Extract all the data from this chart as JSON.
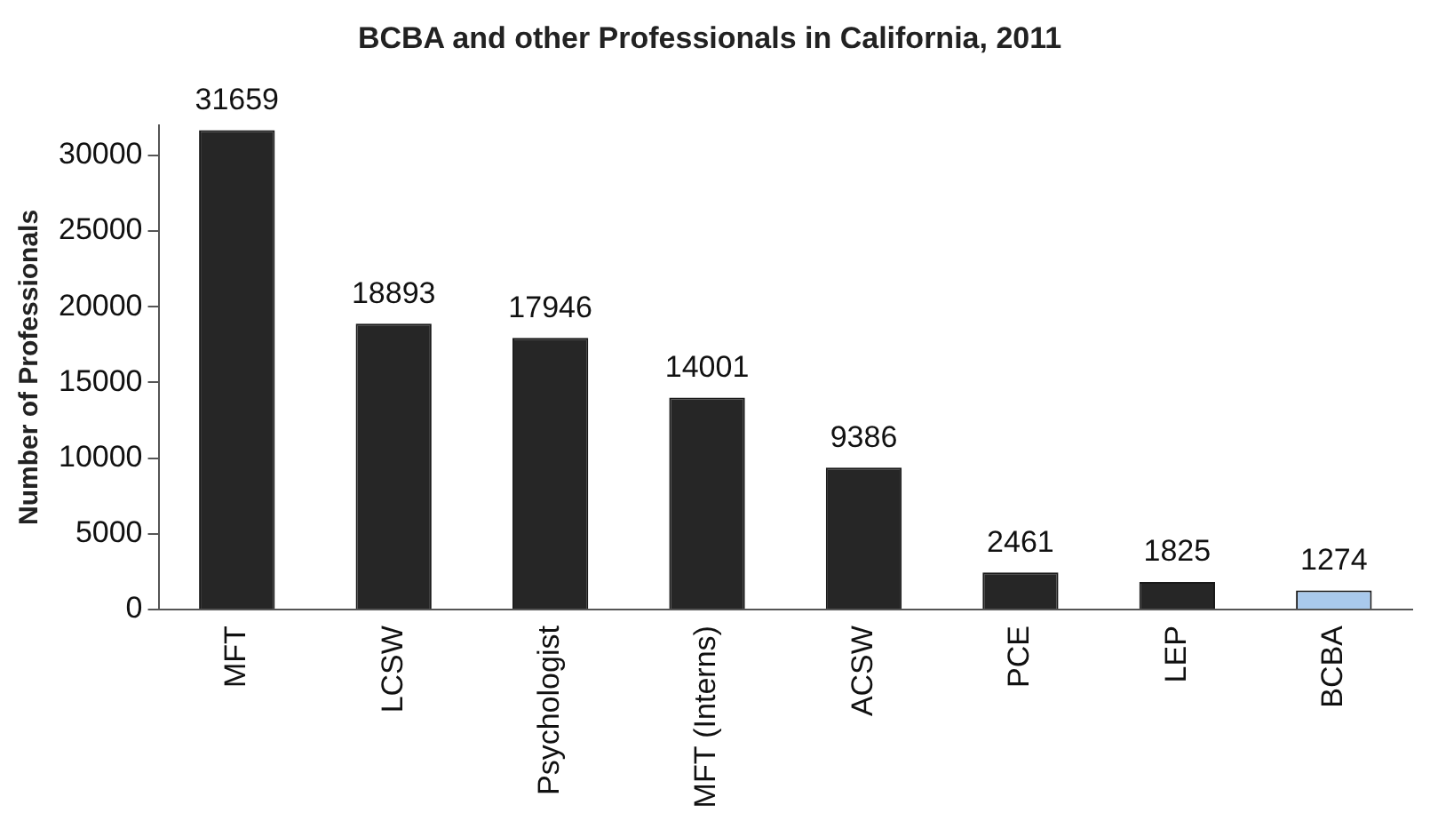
{
  "chart_data": {
    "type": "bar",
    "title": "BCBA and other Professionals in California, 2011",
    "ylabel": "Number of Professionals",
    "categories": [
      "MFT",
      "LCSW",
      "Psychologist",
      "MFT (Interns)",
      "ACSW",
      "PCE",
      "LEP",
      "BCBA"
    ],
    "values": [
      31659,
      18893,
      17946,
      14001,
      9386,
      2461,
      1825,
      1274
    ],
    "colors": [
      "#262626",
      "#262626",
      "#262626",
      "#262626",
      "#262626",
      "#262626",
      "#262626",
      "#a9c9ec"
    ],
    "ylim": [
      0,
      32000
    ],
    "yticks": [
      0,
      5000,
      10000,
      15000,
      20000,
      25000,
      30000
    ],
    "grid": false,
    "legend": false,
    "data_labels": true
  }
}
